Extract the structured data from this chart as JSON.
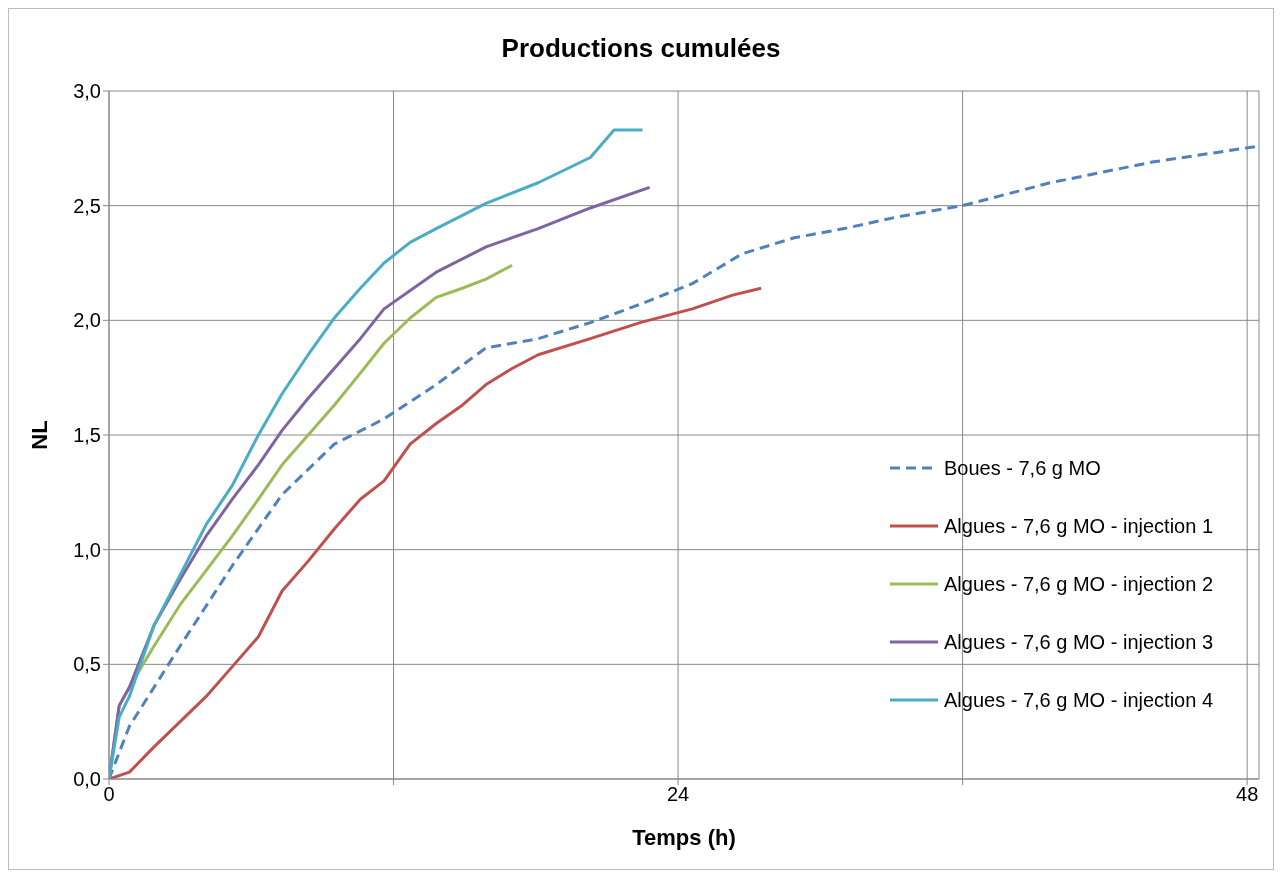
{
  "chart_data": {
    "type": "line",
    "title": "Productions cumulées",
    "xlabel": "Temps (h)",
    "ylabel": "NL",
    "xlim": [
      0,
      48.5
    ],
    "xticks": [
      0,
      {
        "value": 12,
        "label": null
      },
      24,
      {
        "value": 36,
        "label": null
      },
      48
    ],
    "ylim": [
      0,
      3
    ],
    "yticks": [
      {
        "value": 0,
        "label": "0,0"
      },
      {
        "value": 0.5,
        "label": "0,5"
      },
      {
        "value": 1,
        "label": "1,0"
      },
      {
        "value": 1.5,
        "label": "1,5"
      },
      {
        "value": 2,
        "label": "2,0"
      },
      {
        "value": 2.5,
        "label": "2,5"
      },
      {
        "value": 3,
        "label": "3,0"
      }
    ],
    "grid": true,
    "legend": "right",
    "marker": "none",
    "series": [
      {
        "name": "Boues - 7,6 g MO",
        "color": "#4f81bd",
        "line_style": "dashed",
        "x": [
          0,
          0.86,
          3,
          5.2,
          7.3,
          9.5,
          11.6,
          13.8,
          15.9,
          18.1,
          20.3,
          22.4,
          24.6,
          26.7,
          28.9,
          31,
          33.2,
          36,
          39.7,
          44,
          48.5
        ],
        "values": [
          0,
          0.23,
          0.58,
          0.93,
          1.24,
          1.46,
          1.57,
          1.72,
          1.88,
          1.92,
          1.99,
          2.07,
          2.16,
          2.29,
          2.36,
          2.4,
          2.45,
          2.5,
          2.6,
          2.69,
          2.76
        ]
      },
      {
        "name": "Algues - 7,6 g MO - injection 1",
        "color": "#c0504d",
        "line_style": "solid",
        "x": [
          0,
          0.86,
          1.9,
          3,
          4.1,
          5.2,
          6.3,
          7.3,
          8.4,
          9.5,
          10.6,
          11.6,
          12.7,
          13.8,
          14.9,
          15.9,
          17,
          18.1,
          20.3,
          22.4,
          24.6,
          26.3,
          27.5
        ],
        "values": [
          0,
          0.03,
          0.14,
          0.25,
          0.36,
          0.49,
          0.62,
          0.82,
          0.95,
          1.09,
          1.22,
          1.3,
          1.46,
          1.55,
          1.63,
          1.72,
          1.79,
          1.85,
          1.92,
          1.99,
          2.05,
          2.11,
          2.14
        ]
      },
      {
        "name": "Algues - 7,6 g MO - injection 2",
        "color": "#9bbb59",
        "line_style": "solid",
        "x": [
          0,
          0.43,
          0.86,
          1.9,
          3,
          4.1,
          5.2,
          6.3,
          7.3,
          8.4,
          9.5,
          10.6,
          11.6,
          12.7,
          13.8,
          14.9,
          15.9,
          17
        ],
        "values": [
          0,
          0.32,
          0.4,
          0.58,
          0.76,
          0.91,
          1.06,
          1.22,
          1.37,
          1.5,
          1.63,
          1.77,
          1.9,
          2.01,
          2.1,
          2.14,
          2.18,
          2.24
        ]
      },
      {
        "name": "Algues - 7,6 g MO - injection 3",
        "color": "#8064a2",
        "line_style": "solid",
        "x": [
          0,
          0.43,
          0.86,
          1.9,
          3,
          4.1,
          5.2,
          6.3,
          7.3,
          8.4,
          9.5,
          10.6,
          11.6,
          13.8,
          15.9,
          18.1,
          20.3,
          22.8
        ],
        "values": [
          0,
          0.32,
          0.4,
          0.67,
          0.87,
          1.06,
          1.22,
          1.37,
          1.52,
          1.66,
          1.79,
          1.92,
          2.05,
          2.21,
          2.32,
          2.4,
          2.49,
          2.58
        ]
      },
      {
        "name": "Algues - 7,6 g MO - injection 4",
        "color": "#4bacc6",
        "line_style": "solid",
        "x": [
          0,
          0.43,
          0.86,
          1.9,
          3,
          4.1,
          5.2,
          6.3,
          7.3,
          8.4,
          9.5,
          10.6,
          11.6,
          12.7,
          13.8,
          15.9,
          18.1,
          20.3,
          21.3,
          22.5
        ],
        "values": [
          0,
          0.27,
          0.36,
          0.67,
          0.89,
          1.11,
          1.28,
          1.5,
          1.68,
          1.85,
          2.01,
          2.14,
          2.25,
          2.34,
          2.4,
          2.51,
          2.6,
          2.71,
          2.83,
          2.83
        ]
      }
    ]
  }
}
